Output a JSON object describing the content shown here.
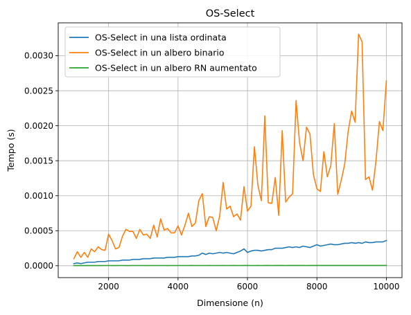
{
  "chart_data": {
    "type": "line",
    "title": "OS-Select",
    "xlabel": "Dimensione (n)",
    "ylabel": "Tempo (s)",
    "xlim": [
      550,
      10450
    ],
    "ylim": [
      -0.00017,
      0.00347
    ],
    "xticks": [
      2000,
      4000,
      6000,
      8000,
      10000
    ],
    "xtick_labels": [
      "2000",
      "4000",
      "6000",
      "8000",
      "10000"
    ],
    "yticks": [
      0,
      0.0005,
      0.001,
      0.0015,
      0.002,
      0.0025,
      0.003
    ],
    "ytick_labels": [
      "0.0000",
      "0.0005",
      "0.0010",
      "0.0015",
      "0.0020",
      "0.0025",
      "0.0030"
    ],
    "grid": true,
    "legend_position": "top-left",
    "x": [
      1000,
      1100,
      1200,
      1300,
      1400,
      1500,
      1600,
      1700,
      1800,
      1900,
      2000,
      2100,
      2200,
      2300,
      2400,
      2500,
      2600,
      2700,
      2800,
      2900,
      3000,
      3100,
      3200,
      3300,
      3400,
      3500,
      3600,
      3700,
      3800,
      3900,
      4000,
      4100,
      4200,
      4300,
      4400,
      4500,
      4600,
      4700,
      4800,
      4900,
      5000,
      5100,
      5200,
      5300,
      5400,
      5500,
      5600,
      5700,
      5800,
      5900,
      6000,
      6100,
      6200,
      6300,
      6400,
      6500,
      6600,
      6700,
      6800,
      6900,
      7000,
      7100,
      7200,
      7300,
      7400,
      7500,
      7600,
      7700,
      7800,
      7900,
      8000,
      8100,
      8200,
      8300,
      8400,
      8500,
      8600,
      8700,
      8800,
      8900,
      9000,
      9100,
      9200,
      9300,
      9400,
      9500,
      9600,
      9700,
      9800,
      9900,
      10000
    ],
    "series": [
      {
        "name": "OS-Select in una lista ordinata",
        "color": "#1f77b4",
        "values": [
          3e-05,
          4e-05,
          3e-05,
          4e-05,
          5e-05,
          5e-05,
          5e-05,
          6e-05,
          6e-05,
          6e-05,
          7e-05,
          7e-05,
          7e-05,
          7e-05,
          8e-05,
          8e-05,
          8e-05,
          9e-05,
          9e-05,
          9e-05,
          0.0001,
          0.0001,
          0.0001,
          0.00011,
          0.00011,
          0.00011,
          0.00011,
          0.00012,
          0.00012,
          0.00012,
          0.00013,
          0.00013,
          0.00013,
          0.00013,
          0.00014,
          0.00014,
          0.00015,
          0.00018,
          0.00016,
          0.00018,
          0.00017,
          0.00018,
          0.00019,
          0.00018,
          0.00019,
          0.00018,
          0.00017,
          0.00019,
          0.00021,
          0.00024,
          0.00019,
          0.00021,
          0.00022,
          0.00022,
          0.00021,
          0.00022,
          0.00023,
          0.00023,
          0.00025,
          0.00025,
          0.00025,
          0.00026,
          0.00027,
          0.00026,
          0.00027,
          0.00026,
          0.00028,
          0.00027,
          0.00026,
          0.00028,
          0.0003,
          0.00028,
          0.00029,
          0.0003,
          0.00031,
          0.0003,
          0.0003,
          0.00031,
          0.00032,
          0.00032,
          0.00033,
          0.00032,
          0.00033,
          0.00032,
          0.00034,
          0.00033,
          0.00033,
          0.00034,
          0.00034,
          0.00034,
          0.00036
        ]
      },
      {
        "name": "OS-Select in un albero binario",
        "color": "#ff7f0e",
        "values": [
          0.0001,
          0.0002,
          0.00012,
          0.00019,
          0.00012,
          0.00024,
          0.0002,
          0.00027,
          0.00023,
          0.00022,
          0.00045,
          0.00036,
          0.00024,
          0.00026,
          0.00042,
          0.00052,
          0.00049,
          0.00049,
          0.00039,
          0.00052,
          0.00044,
          0.00045,
          0.00039,
          0.00058,
          0.00041,
          0.00067,
          0.00051,
          0.00053,
          0.00047,
          0.00047,
          0.00057,
          0.00044,
          0.00058,
          0.00075,
          0.00056,
          0.00061,
          0.00093,
          0.00103,
          0.00056,
          0.0007,
          0.00069,
          0.0005,
          0.00071,
          0.00119,
          0.00081,
          0.00085,
          0.0007,
          0.00074,
          0.00065,
          0.00113,
          0.00078,
          0.00085,
          0.0017,
          0.00115,
          0.00093,
          0.00214,
          0.0009,
          0.00089,
          0.00126,
          0.00072,
          0.00193,
          0.00091,
          0.00098,
          0.00103,
          0.00236,
          0.00176,
          0.0015,
          0.00198,
          0.00188,
          0.0013,
          0.0011,
          0.00106,
          0.00163,
          0.00127,
          0.00143,
          0.00203,
          0.00102,
          0.00122,
          0.00145,
          0.00192,
          0.00221,
          0.00205,
          0.00331,
          0.0032,
          0.00123,
          0.00127,
          0.00108,
          0.00149,
          0.00206,
          0.00193,
          0.00264
        ]
      },
      {
        "name": "OS-Select in un albero RN aumentato",
        "color": "#2ca02c",
        "values": [
          2e-06,
          2e-06,
          2e-06,
          2e-06,
          2e-06,
          2e-06,
          2e-06,
          2e-06,
          2e-06,
          3e-06,
          3e-06,
          2e-06,
          2e-06,
          3e-06,
          3e-06,
          2e-06,
          2e-06,
          3e-06,
          3e-06,
          3e-06,
          3e-06,
          2e-06,
          3e-06,
          3e-06,
          3e-06,
          3e-06,
          3e-06,
          2e-06,
          3e-06,
          3e-06,
          3e-06,
          3e-06,
          3e-06,
          3e-06,
          4e-06,
          3e-06,
          3e-06,
          3e-06,
          3e-06,
          4e-06,
          3e-06,
          3e-06,
          3e-06,
          4e-06,
          3e-06,
          3e-06,
          4e-06,
          3e-06,
          3e-06,
          4e-06,
          4e-06,
          3e-06,
          3e-06,
          4e-06,
          3e-06,
          4e-06,
          4e-06,
          3e-06,
          4e-06,
          4e-06,
          4e-06,
          3e-06,
          4e-06,
          4e-06,
          4e-06,
          4e-06,
          4e-06,
          3e-06,
          4e-06,
          4e-06,
          4e-06,
          4e-06,
          4e-06,
          4e-06,
          4e-06,
          4e-06,
          4e-06,
          4e-06,
          4e-06,
          4e-06,
          4e-06,
          4e-06,
          4e-06,
          4e-06,
          4e-06,
          4e-06,
          4e-06,
          4e-06,
          4e-06,
          4e-06,
          4e-06
        ]
      }
    ]
  }
}
